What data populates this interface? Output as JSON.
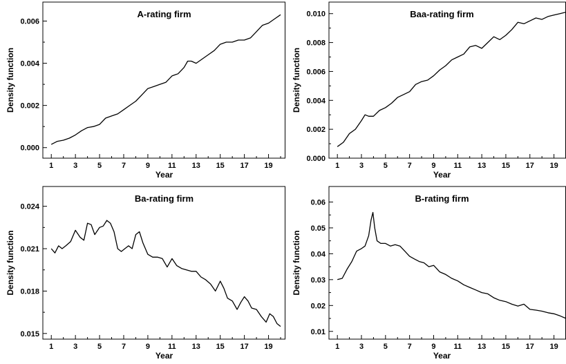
{
  "chart_data": [
    {
      "type": "line",
      "title": "A-rating firm",
      "xlabel": "Year",
      "ylabel": "Density function",
      "xlim": [
        0.3,
        20.4
      ],
      "ylim": [
        -0.0005,
        0.0069
      ],
      "x_ticks": [
        1,
        3,
        5,
        7,
        9,
        11,
        13,
        15,
        17,
        19
      ],
      "x_minor_ticks": [
        2,
        4,
        6,
        8,
        10,
        12,
        14,
        16,
        18,
        20
      ],
      "y_ticks": [
        0.0,
        0.002,
        0.004,
        0.006
      ],
      "y_tick_labels": [
        "0.000",
        "0.002",
        "0.004",
        "0.006"
      ],
      "y_minor_ticks": [
        0.001,
        0.003,
        0.005
      ],
      "grid": false,
      "series": [
        {
          "x": [
            1,
            1.5,
            2,
            2.5,
            3,
            3.5,
            4,
            4.5,
            5,
            5.5,
            6,
            6.5,
            7,
            7.5,
            8,
            8.5,
            9,
            9.5,
            10,
            10.5,
            11,
            11.5,
            12,
            12.3,
            12.6,
            13,
            13.5,
            14,
            14.5,
            15,
            15.5,
            16,
            16.5,
            17,
            17.5,
            18,
            18.5,
            19,
            19.5,
            20
          ],
          "y": [
            0.00015,
            0.0003,
            0.00035,
            0.00045,
            0.0006,
            0.0008,
            0.00095,
            0.001,
            0.0011,
            0.0014,
            0.0015,
            0.0016,
            0.0018,
            0.002,
            0.0022,
            0.0025,
            0.0028,
            0.0029,
            0.003,
            0.0031,
            0.0034,
            0.0035,
            0.0038,
            0.0041,
            0.0041,
            0.004,
            0.0042,
            0.0044,
            0.0046,
            0.0049,
            0.005,
            0.005,
            0.0051,
            0.0051,
            0.0052,
            0.0055,
            0.0058,
            0.0059,
            0.0061,
            0.0063
          ]
        }
      ]
    },
    {
      "type": "line",
      "title": "Baa-rating firm",
      "xlabel": "Year",
      "ylabel": "Density function",
      "xlim": [
        0.3,
        20.0
      ],
      "ylim": [
        0.0,
        0.0108
      ],
      "x_ticks": [
        1,
        3,
        5,
        7,
        9,
        11,
        13,
        15,
        17,
        19
      ],
      "x_minor_ticks": [
        2,
        4,
        6,
        8,
        10,
        12,
        14,
        16,
        18
      ],
      "y_ticks": [
        0.0,
        0.002,
        0.004,
        0.006,
        0.008,
        0.01
      ],
      "y_tick_labels": [
        "0.000",
        "0.002",
        "0.004",
        "0.006",
        "0.008",
        "0.010"
      ],
      "y_minor_ticks": [
        0.001,
        0.003,
        0.005,
        0.007,
        0.009
      ],
      "grid": false,
      "series": [
        {
          "x": [
            1,
            1.5,
            2,
            2.5,
            3,
            3.3,
            3.6,
            4,
            4.5,
            5,
            5.5,
            6,
            6.5,
            7,
            7.5,
            8,
            8.5,
            9,
            9.5,
            10,
            10.5,
            11,
            11.5,
            12,
            12.5,
            13,
            13.5,
            14,
            14.5,
            15,
            15.5,
            16,
            16.5,
            17,
            17.5,
            18,
            18.5,
            19,
            19.5,
            20
          ],
          "y": [
            0.0008,
            0.0011,
            0.0017,
            0.002,
            0.0026,
            0.003,
            0.0029,
            0.0029,
            0.0033,
            0.0035,
            0.0038,
            0.0042,
            0.0044,
            0.0046,
            0.0051,
            0.0053,
            0.0054,
            0.0057,
            0.0061,
            0.0064,
            0.0068,
            0.007,
            0.0072,
            0.0077,
            0.0078,
            0.0076,
            0.008,
            0.0084,
            0.0082,
            0.0085,
            0.0089,
            0.0094,
            0.0093,
            0.0095,
            0.0097,
            0.0096,
            0.0098,
            0.0099,
            0.01,
            0.0101
          ]
        }
      ]
    },
    {
      "type": "line",
      "title": "Ba-rating firm",
      "xlabel": "Year",
      "ylabel": "Density function",
      "xlim": [
        0.3,
        20.4
      ],
      "ylim": [
        0.0146,
        0.0254
      ],
      "x_ticks": [
        1,
        3,
        5,
        7,
        9,
        11,
        13,
        15,
        17,
        19
      ],
      "x_minor_ticks": [
        2,
        4,
        6,
        8,
        10,
        12,
        14,
        16,
        18,
        20
      ],
      "y_ticks": [
        0.015,
        0.018,
        0.021,
        0.024
      ],
      "y_tick_labels": [
        "0.015",
        "0.018",
        "0.021",
        "0.024"
      ],
      "y_minor_ticks": [
        0.0165,
        0.0195,
        0.0225
      ],
      "grid": false,
      "series": [
        {
          "x": [
            1,
            1.3,
            1.6,
            1.9,
            2.2,
            2.6,
            3,
            3.4,
            3.7,
            4,
            4.3,
            4.6,
            5,
            5.3,
            5.6,
            5.9,
            6.2,
            6.5,
            6.8,
            7.1,
            7.4,
            7.7,
            8,
            8.3,
            8.6,
            9,
            9.4,
            9.8,
            10.2,
            10.6,
            11,
            11.4,
            11.8,
            12.2,
            12.6,
            13,
            13.4,
            13.8,
            14.2,
            14.6,
            15,
            15.3,
            15.6,
            16,
            16.4,
            16.7,
            17,
            17.3,
            17.6,
            18,
            18.4,
            18.8,
            19.1,
            19.4,
            19.7,
            20
          ],
          "y": [
            0.021,
            0.0207,
            0.0212,
            0.021,
            0.0212,
            0.0215,
            0.0223,
            0.0218,
            0.0216,
            0.0228,
            0.0227,
            0.022,
            0.0225,
            0.0226,
            0.023,
            0.0228,
            0.0222,
            0.021,
            0.0208,
            0.021,
            0.0212,
            0.021,
            0.022,
            0.0222,
            0.0214,
            0.0206,
            0.0204,
            0.0204,
            0.0203,
            0.0197,
            0.0203,
            0.0198,
            0.0196,
            0.0195,
            0.0194,
            0.0194,
            0.019,
            0.0188,
            0.0185,
            0.018,
            0.0187,
            0.0182,
            0.0175,
            0.0173,
            0.0167,
            0.0172,
            0.0176,
            0.0173,
            0.0168,
            0.0167,
            0.0162,
            0.0158,
            0.0164,
            0.0162,
            0.0157,
            0.0155
          ]
        }
      ]
    },
    {
      "type": "line",
      "title": "B-rating firm",
      "xlabel": "Year",
      "ylabel": "Density function",
      "xlim": [
        0.3,
        20.0
      ],
      "ylim": [
        0.007,
        0.066
      ],
      "x_ticks": [
        1,
        3,
        5,
        7,
        9,
        11,
        13,
        15,
        17,
        19
      ],
      "x_minor_ticks": [
        2,
        4,
        6,
        8,
        10,
        12,
        14,
        16,
        18
      ],
      "y_ticks": [
        0.01,
        0.02,
        0.03,
        0.04,
        0.05,
        0.06
      ],
      "y_tick_labels": [
        "0.01",
        "0.02",
        "0.03",
        "0.04",
        "0.05",
        "0.06"
      ],
      "y_minor_ticks": [
        0.015,
        0.025,
        0.035,
        0.045,
        0.055
      ],
      "grid": false,
      "series": [
        {
          "x": [
            1,
            1.4,
            1.8,
            2.2,
            2.6,
            3,
            3.3,
            3.6,
            3.8,
            3.95,
            4.1,
            4.3,
            4.6,
            5,
            5.4,
            5.8,
            6.2,
            6.6,
            7,
            7.4,
            7.8,
            8.2,
            8.6,
            9,
            9.5,
            10,
            10.5,
            11,
            11.5,
            12,
            12.5,
            13,
            13.5,
            14,
            14.5,
            15,
            15.5,
            16,
            16.5,
            17,
            17.5,
            18,
            18.5,
            19,
            19.5,
            20
          ],
          "y": [
            0.03,
            0.0305,
            0.034,
            0.037,
            0.041,
            0.042,
            0.043,
            0.047,
            0.053,
            0.056,
            0.05,
            0.045,
            0.044,
            0.044,
            0.043,
            0.0435,
            0.043,
            0.041,
            0.039,
            0.038,
            0.037,
            0.0365,
            0.035,
            0.0355,
            0.033,
            0.032,
            0.0305,
            0.0295,
            0.028,
            0.027,
            0.026,
            0.025,
            0.0245,
            0.023,
            0.022,
            0.0215,
            0.0205,
            0.0198,
            0.0205,
            0.0185,
            0.0182,
            0.0178,
            0.0172,
            0.0168,
            0.016,
            0.015
          ]
        }
      ]
    }
  ]
}
